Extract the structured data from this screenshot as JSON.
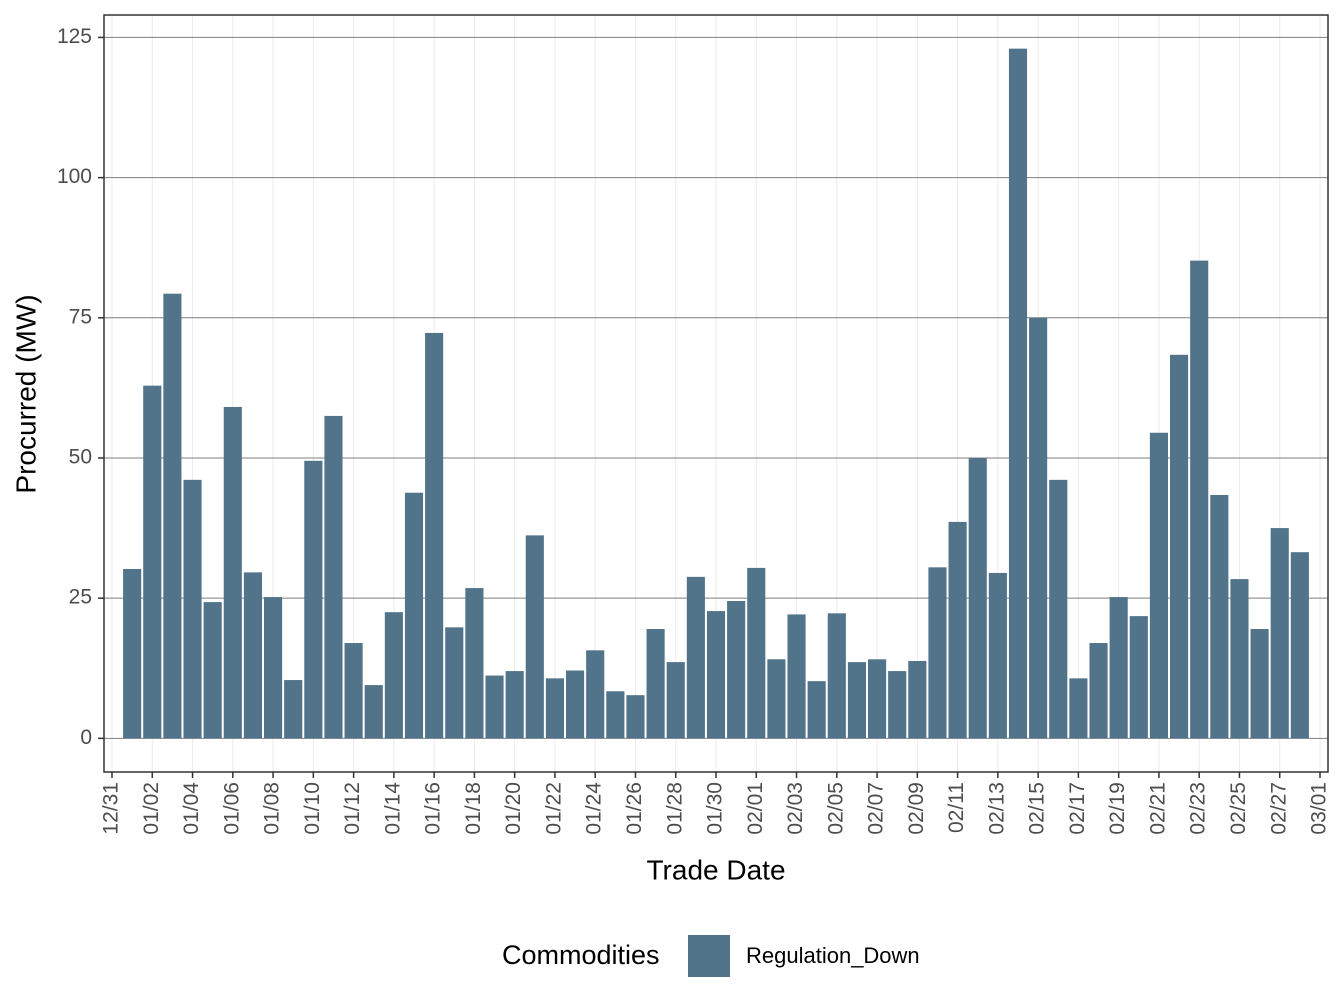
{
  "chart_data": {
    "type": "bar",
    "x_label": "Trade Date",
    "y_label": "Procurred (MW)",
    "x": [
      "01/01",
      "01/02",
      "01/03",
      "01/04",
      "01/05",
      "01/06",
      "01/07",
      "01/08",
      "01/09",
      "01/10",
      "01/11",
      "01/12",
      "01/13",
      "01/14",
      "01/15",
      "01/16",
      "01/17",
      "01/18",
      "01/19",
      "01/20",
      "01/21",
      "01/22",
      "01/23",
      "01/24",
      "01/25",
      "01/26",
      "01/27",
      "01/28",
      "01/29",
      "01/30",
      "01/31",
      "02/01",
      "02/02",
      "02/03",
      "02/04",
      "02/05",
      "02/06",
      "02/07",
      "02/08",
      "02/09",
      "02/10",
      "02/11",
      "02/12",
      "02/13",
      "02/14",
      "02/15",
      "02/16",
      "02/17",
      "02/18",
      "02/19",
      "02/20",
      "02/21",
      "02/22",
      "02/23",
      "02/24",
      "02/25",
      "02/26",
      "02/27",
      "02/28"
    ],
    "series": [
      {
        "name": "Regulation_Down",
        "color": "#51748a",
        "values": [
          30.2,
          62.9,
          79.3,
          46.1,
          24.3,
          59.1,
          29.6,
          25.2,
          10.4,
          49.5,
          57.5,
          17.0,
          9.5,
          22.5,
          43.8,
          72.3,
          19.8,
          26.8,
          11.2,
          12.0,
          36.2,
          10.7,
          12.1,
          15.7,
          8.4,
          7.7,
          19.5,
          13.6,
          28.8,
          22.7,
          24.5,
          30.4,
          14.1,
          22.1,
          10.2,
          22.3,
          13.6,
          14.1,
          12.0,
          13.8,
          30.5,
          38.6,
          50.0,
          29.5,
          123.0,
          75.0,
          46.1,
          10.7,
          17.0,
          25.2,
          21.8,
          54.5,
          68.4,
          85.2,
          43.4,
          28.4,
          19.5,
          37.5,
          33.2
        ]
      }
    ],
    "legend_title": "Commodities",
    "legend_position": "bottom",
    "xlim": [
      "12/31",
      "03/01"
    ],
    "xticks": [
      "12/31",
      "01/02",
      "01/04",
      "01/06",
      "01/08",
      "01/10",
      "01/12",
      "01/14",
      "01/16",
      "01/18",
      "01/20",
      "01/22",
      "01/24",
      "01/26",
      "01/28",
      "01/30",
      "02/01",
      "02/03",
      "02/05",
      "02/07",
      "02/09",
      "02/11",
      "02/13",
      "02/15",
      "02/17",
      "02/19",
      "02/21",
      "02/23",
      "02/25",
      "02/27",
      "03/01"
    ],
    "ylim": [
      -6,
      129
    ],
    "yticks": [
      0,
      25,
      50,
      75,
      100,
      125
    ],
    "grid": true
  }
}
